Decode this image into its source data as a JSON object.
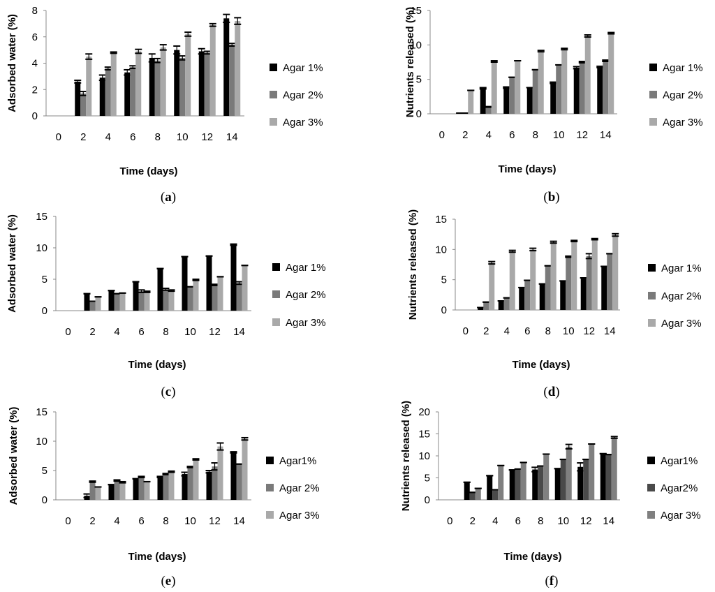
{
  "colors": {
    "series_1": "#000000",
    "series_2": "#7a7a7a",
    "series_3": "#a9a9a9",
    "series_2_alt": "#4a4a4a",
    "series_3_alt": "#808080",
    "axis": "#888888",
    "error_bar": "#000000"
  },
  "chart_data": [
    {
      "panel": "a",
      "caption": "(a)",
      "type": "bar",
      "xlabel": "Time (days)",
      "ylabel": "Adsorbed water (%)",
      "categories": [
        "0",
        "2",
        "4",
        "6",
        "8",
        "10",
        "12",
        "14"
      ],
      "ylim": [
        0,
        8
      ],
      "yticks": [
        0,
        2,
        4,
        6,
        8
      ],
      "grid": false,
      "legend_position": "right",
      "series": [
        {
          "name": "Agar 1%",
          "color": "#000000",
          "values": [
            0,
            2.6,
            2.9,
            3.3,
            4.4,
            5.0,
            4.9,
            7.4
          ],
          "errors": [
            0,
            0.1,
            0.2,
            0.2,
            0.3,
            0.3,
            0.2,
            0.3
          ]
        },
        {
          "name": "Agar 2%",
          "color": "#7a7a7a",
          "values": [
            0,
            1.7,
            3.6,
            3.7,
            4.2,
            4.4,
            4.8,
            5.4
          ],
          "errors": [
            0,
            0.15,
            0.1,
            0.1,
            0.15,
            0.15,
            0.1,
            0.1
          ]
        },
        {
          "name": "Agar 3%",
          "color": "#a9a9a9",
          "values": [
            0,
            4.5,
            4.8,
            4.9,
            5.2,
            6.2,
            6.9,
            7.2
          ],
          "errors": [
            0,
            0.2,
            0.05,
            0.15,
            0.2,
            0.15,
            0.1,
            0.25
          ]
        }
      ]
    },
    {
      "panel": "b",
      "caption": "(b)",
      "type": "bar",
      "xlabel": "Time (days)",
      "ylabel": "Nutrients released (%)",
      "categories": [
        "0",
        "2",
        "4",
        "6",
        "8",
        "10",
        "12",
        "14"
      ],
      "ylim": [
        0,
        15
      ],
      "yticks": [
        0,
        5,
        10,
        15
      ],
      "grid": false,
      "legend_position": "right",
      "series": [
        {
          "name": "Agar 1%",
          "color": "#000000",
          "values": [
            0,
            0.1,
            3.7,
            3.8,
            3.8,
            4.5,
            6.7,
            6.8
          ],
          "errors": [
            0,
            0,
            0.1,
            0.1,
            0,
            0.1,
            0.15,
            0.1
          ]
        },
        {
          "name": "Agar 2%",
          "color": "#7a7a7a",
          "values": [
            0,
            0.1,
            1.0,
            5.3,
            6.4,
            7.1,
            7.5,
            7.7
          ],
          "errors": [
            0,
            0,
            0.05,
            0,
            0,
            0,
            0.1,
            0.1
          ]
        },
        {
          "name": "Agar 3%",
          "color": "#a9a9a9",
          "values": [
            0,
            3.4,
            7.6,
            7.7,
            9.1,
            9.4,
            11.3,
            11.7
          ],
          "errors": [
            0,
            0,
            0.1,
            0,
            0.1,
            0.1,
            0.15,
            0.1
          ]
        }
      ]
    },
    {
      "panel": "c",
      "caption": "(c)",
      "type": "bar",
      "xlabel": "Time (days)",
      "ylabel": "Adsorbed water (%)",
      "categories": [
        "0",
        "2",
        "4",
        "6",
        "8",
        "10",
        "12",
        "14"
      ],
      "ylim": [
        0,
        15
      ],
      "yticks": [
        0,
        5,
        10,
        15
      ],
      "grid": false,
      "legend_position": "right",
      "series": [
        {
          "name": "Agar 1%",
          "color": "#000000",
          "values": [
            0,
            2.7,
            3.2,
            4.6,
            6.7,
            8.6,
            8.7,
            10.5
          ],
          "errors": [
            0,
            0,
            0,
            0,
            0,
            0,
            0,
            0.1
          ]
        },
        {
          "name": "Agar 2%",
          "color": "#7a7a7a",
          "values": [
            0,
            1.5,
            2.7,
            3.1,
            3.4,
            3.8,
            4.1,
            4.4
          ],
          "errors": [
            0,
            0,
            0,
            0.2,
            0.15,
            0,
            0.1,
            0.2
          ]
        },
        {
          "name": "Agar 3%",
          "color": "#a9a9a9",
          "values": [
            0,
            2.2,
            2.8,
            3.0,
            3.2,
            4.9,
            5.4,
            7.2
          ],
          "errors": [
            0,
            0,
            0,
            0.1,
            0.1,
            0.1,
            0,
            0
          ]
        }
      ]
    },
    {
      "panel": "d",
      "caption": "(d)",
      "type": "bar",
      "xlabel": "Time (days)",
      "ylabel": "Nutrients released (%)",
      "categories": [
        "0",
        "2",
        "4",
        "6",
        "8",
        "10",
        "12",
        "14"
      ],
      "ylim": [
        0,
        15
      ],
      "yticks": [
        0,
        5,
        10,
        15
      ],
      "grid": false,
      "legend_position": "right",
      "series": [
        {
          "name": "Agar 1%",
          "color": "#000000",
          "values": [
            0,
            0.4,
            1.5,
            3.7,
            4.3,
            4.8,
            5.3,
            7.2
          ],
          "errors": [
            0,
            0,
            0,
            0,
            0,
            0,
            0,
            0
          ]
        },
        {
          "name": "Agar 2%",
          "color": "#7a7a7a",
          "values": [
            0,
            1.3,
            2.0,
            4.9,
            7.3,
            8.8,
            8.9,
            9.3
          ],
          "errors": [
            0,
            0,
            0,
            0,
            0,
            0.1,
            0.4,
            0
          ]
        },
        {
          "name": "Agar 3%",
          "color": "#a9a9a9",
          "values": [
            0,
            7.8,
            9.7,
            10.0,
            11.2,
            11.4,
            11.7,
            12.4
          ],
          "errors": [
            0,
            0.2,
            0.15,
            0.2,
            0.15,
            0.1,
            0.1,
            0.2
          ]
        }
      ]
    },
    {
      "panel": "e",
      "caption": "(e)",
      "type": "bar",
      "xlabel": "Time (days)",
      "ylabel": "Adsorbed water (%)",
      "categories": [
        "0",
        "2",
        "4",
        "6",
        "8",
        "10",
        "12",
        "14"
      ],
      "ylim": [
        0,
        15
      ],
      "yticks": [
        0,
        5,
        10,
        15
      ],
      "grid": false,
      "legend_position": "right",
      "series": [
        {
          "name": "Agar1%",
          "color": "#000000",
          "values": [
            0,
            0.7,
            2.6,
            3.6,
            3.9,
            4.4,
            4.8,
            8.1
          ],
          "errors": [
            0,
            0.3,
            0,
            0,
            0.1,
            0.3,
            0.2,
            0.1
          ]
        },
        {
          "name": "Agar 2%",
          "color": "#7a7a7a",
          "values": [
            0,
            3.1,
            3.3,
            3.9,
            4.4,
            5.6,
            5.7,
            6.1
          ],
          "errors": [
            0,
            0.1,
            0.1,
            0.1,
            0.1,
            0.1,
            0.6,
            0
          ]
        },
        {
          "name": "Agar 3%",
          "color": "#a9a9a9",
          "values": [
            0,
            2.2,
            3.0,
            3.1,
            4.8,
            6.9,
            9.1,
            10.4
          ],
          "errors": [
            0,
            0,
            0.1,
            0,
            0.1,
            0.1,
            0.6,
            0.2
          ]
        }
      ]
    },
    {
      "panel": "f",
      "caption": "(f)",
      "type": "bar",
      "xlabel": "Time (days)",
      "ylabel": "Nutrients released (%)",
      "categories": [
        "0",
        "2",
        "4",
        "6",
        "8",
        "10",
        "12",
        "14"
      ],
      "ylim": [
        0,
        20
      ],
      "yticks": [
        0,
        5,
        10,
        15,
        20
      ],
      "grid": false,
      "legend_position": "right",
      "series": [
        {
          "name": "Agar1%",
          "color": "#000000",
          "values": [
            0,
            4.0,
            5.5,
            6.8,
            6.9,
            7.1,
            7.5,
            10.5
          ],
          "errors": [
            0,
            0,
            0,
            0,
            0.5,
            0,
            0.9,
            0
          ]
        },
        {
          "name": "Agar2%",
          "color": "#4a4a4a",
          "values": [
            0,
            1.7,
            2.3,
            7.0,
            7.7,
            9.2,
            9.2,
            10.3
          ],
          "errors": [
            0,
            0,
            0,
            0,
            0,
            0,
            0,
            0
          ]
        },
        {
          "name": "Agar 3%",
          "color": "#808080",
          "values": [
            0,
            2.6,
            7.8,
            8.5,
            10.4,
            12.1,
            12.7,
            14.2
          ],
          "errors": [
            0,
            0,
            0,
            0,
            0,
            0.5,
            0,
            0.2
          ]
        }
      ]
    }
  ]
}
